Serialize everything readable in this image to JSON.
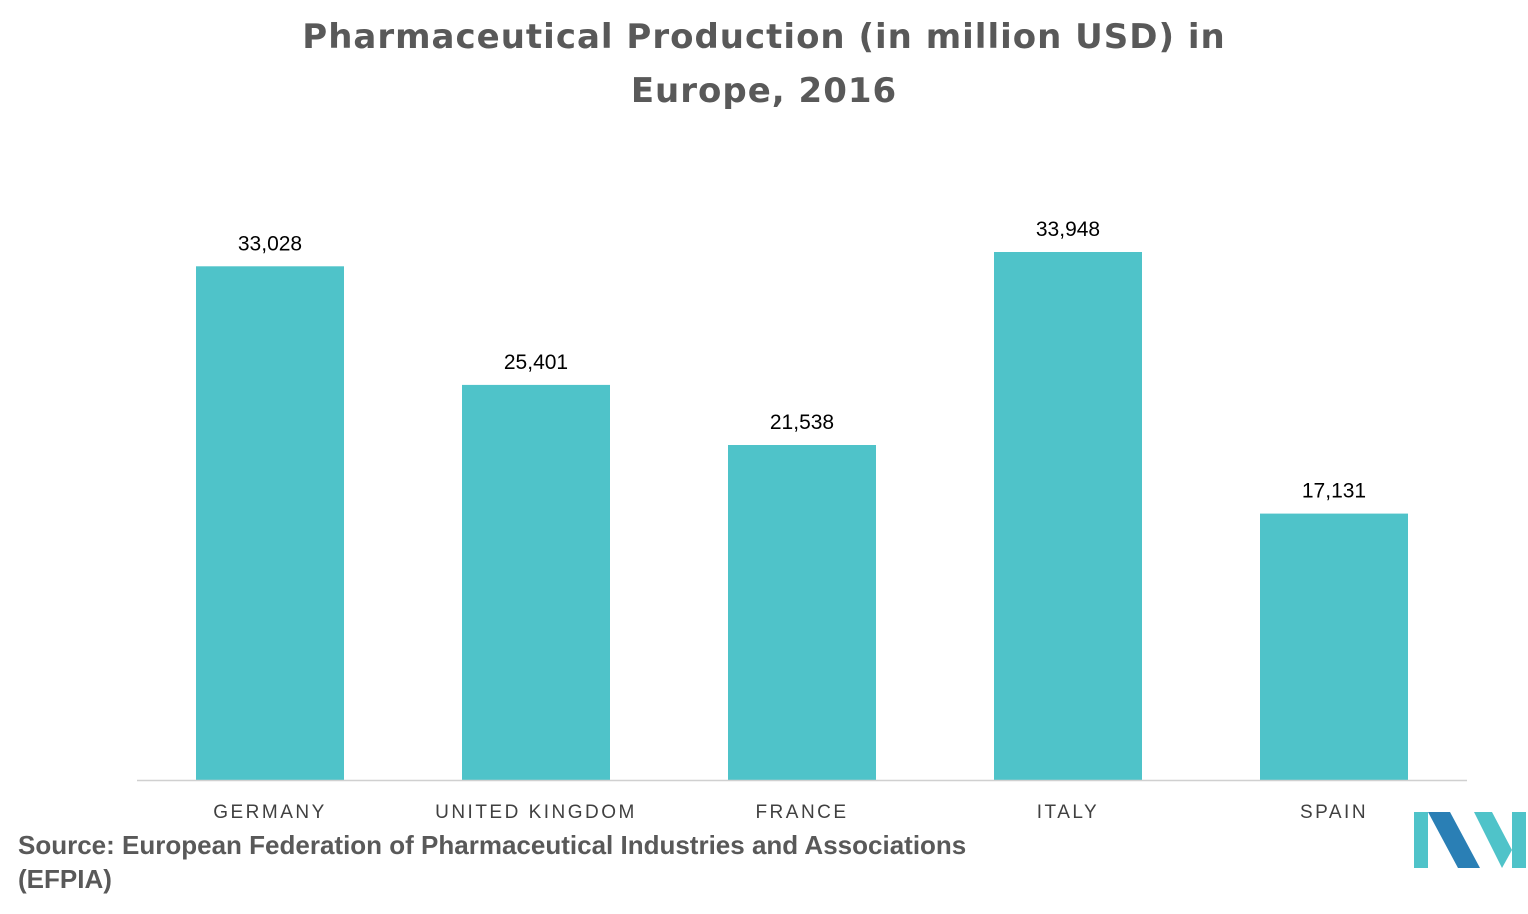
{
  "title_line1": "Pharmaceutical Production (in million USD)  in",
  "title_line2": "Europe, 2016",
  "source": "Source: European Federation of Pharmaceutical Industries and Associations (EFPIA)",
  "colors": {
    "bar": "#4FC3C9",
    "axis": "#D0D0D0",
    "label": "#000000",
    "category": "#404040",
    "title": "#595959",
    "logo_dark": "#2A7FB5",
    "logo_light": "#4FC3C9"
  },
  "chart_data": {
    "type": "bar",
    "title": "Pharmaceutical Production (in million USD)  in Europe, 2016",
    "categories": [
      "GERMANY",
      "UNITED KINGDOM",
      "FRANCE",
      "ITALY",
      "SPAIN"
    ],
    "values": [
      33028,
      25401,
      21538,
      33948,
      17131
    ],
    "data_labels": [
      "33,028",
      "25,401",
      "21,538",
      "33,948",
      "17,131"
    ],
    "xlabel": "",
    "ylabel": "",
    "ylim": [
      0,
      34000
    ],
    "grid": false,
    "legend": "none"
  }
}
